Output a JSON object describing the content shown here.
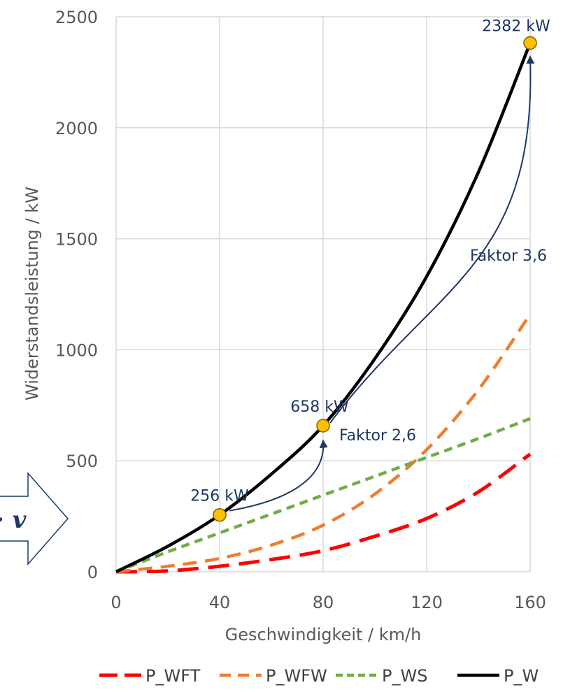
{
  "chart_data": {
    "type": "line",
    "title": "",
    "xlabel": "Geschwindigkeit / km/h",
    "ylabel": "Widerstandsleistung / kW",
    "xlim": [
      0,
      160
    ],
    "ylim": [
      0,
      2500
    ],
    "x_ticks": [
      0,
      40,
      80,
      120,
      160
    ],
    "y_ticks": [
      0,
      500,
      1000,
      1500,
      2000,
      2500
    ],
    "x_tick_labels": [
      "0",
      "40",
      "80",
      "120",
      "160"
    ],
    "y_tick_labels": [
      "0",
      "500",
      "1000",
      "1500",
      "2000",
      "2500"
    ],
    "grid": "vertical and horizontal",
    "legend_position": "bottom",
    "x": [
      0,
      20,
      40,
      60,
      80,
      100,
      120,
      140,
      160
    ],
    "series": [
      {
        "name": "P_WFT",
        "color": "#ff0000",
        "dash": "long-dash",
        "values": [
          0,
          4,
          25,
          55,
          95,
          160,
          240,
          360,
          530
        ]
      },
      {
        "name": "P_WFW",
        "color": "#ed7d31",
        "dash": "dash",
        "values": [
          0,
          25,
          60,
          120,
          210,
          350,
          550,
          820,
          1160
        ]
      },
      {
        "name": "P_WS",
        "color": "#70ad47",
        "dash": "short-dash",
        "values": [
          0,
          90,
          175,
          260,
          345,
          430,
          515,
          600,
          690
        ]
      },
      {
        "name": "P_W",
        "color": "#000000",
        "dash": "solid",
        "values": [
          0,
          115,
          256,
          440,
          658,
          960,
          1330,
          1800,
          2382
        ]
      }
    ],
    "points": [
      {
        "x": 40,
        "y": 256,
        "label": "256 kW"
      },
      {
        "x": 80,
        "y": 658,
        "label": "658 kW"
      },
      {
        "x": 160,
        "y": 2382,
        "label": "2382 kW"
      }
    ],
    "annotations": [
      {
        "text": "Faktor 2,6",
        "from": [
          40,
          256
        ],
        "to": [
          80,
          658
        ]
      },
      {
        "text": "Faktor 3,6",
        "from": [
          80,
          658
        ],
        "to": [
          160,
          2382
        ]
      }
    ],
    "side_formula": "· v",
    "colors": {
      "marker_fill": "#ffc000",
      "marker_stroke": "#7f6000",
      "annotation": "#1f3864",
      "grid": "#d9d9d9"
    }
  }
}
